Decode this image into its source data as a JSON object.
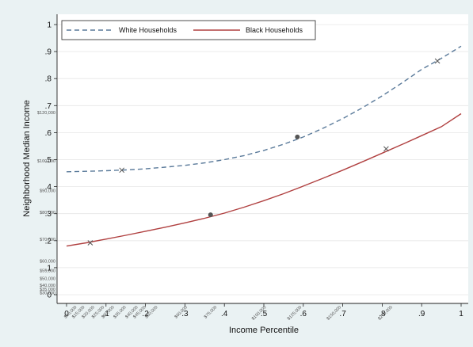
{
  "chart_data": {
    "type": "line",
    "xlabel": "Income Percentile",
    "ylabel": "Neighborhood Median Income",
    "xlim": [
      0,
      1
    ],
    "ylim": [
      0,
      1
    ],
    "x_ticks": [
      0,
      0.1,
      0.2,
      0.3,
      0.4,
      0.5,
      0.6,
      0.7,
      0.8,
      0.9,
      1
    ],
    "x_tick_labels": [
      "0",
      ".1",
      ".2",
      ".3",
      ".4",
      ".5",
      ".6",
      ".7",
      ".8",
      ".9",
      "1"
    ],
    "y_ticks": [
      0,
      0.1,
      0.2,
      0.3,
      0.4,
      0.5,
      0.6,
      0.7,
      0.8,
      0.9,
      1
    ],
    "y_tick_labels": [
      "0",
      ".1",
      ".2",
      ".3",
      ".4",
      ".5",
      ".6",
      ".7",
      ".8",
      ".9",
      "1"
    ],
    "x_dollar_labels": [
      {
        "x": 0.02,
        "label": "$10,000"
      },
      {
        "x": 0.04,
        "label": "$15,000"
      },
      {
        "x": 0.065,
        "label": "$20,000"
      },
      {
        "x": 0.09,
        "label": "$25,000"
      },
      {
        "x": 0.115,
        "label": "$30,000"
      },
      {
        "x": 0.145,
        "label": "$35,000"
      },
      {
        "x": 0.175,
        "label": "$40,000"
      },
      {
        "x": 0.195,
        "label": "$45,000"
      },
      {
        "x": 0.225,
        "label": "$50,000"
      },
      {
        "x": 0.3,
        "label": "$60,000"
      },
      {
        "x": 0.375,
        "label": "$75,000"
      },
      {
        "x": 0.5,
        "label": "$100,000"
      },
      {
        "x": 0.59,
        "label": "$125,000"
      },
      {
        "x": 0.69,
        "label": "$150,000"
      },
      {
        "x": 0.82,
        "label": "$200,000"
      }
    ],
    "y_dollar_labels": [
      {
        "y": 0.007,
        "label": "$30,000"
      },
      {
        "y": 0.02,
        "label": "$35,000"
      },
      {
        "y": 0.035,
        "label": "$40,000"
      },
      {
        "y": 0.06,
        "label": "$50,000"
      },
      {
        "y": 0.09,
        "label": "$55,000"
      },
      {
        "y": 0.125,
        "label": "$60,000"
      },
      {
        "y": 0.205,
        "label": "$70,000"
      },
      {
        "y": 0.305,
        "label": "$80,000"
      },
      {
        "y": 0.385,
        "label": "$90,000"
      },
      {
        "y": 0.495,
        "label": "$100,000"
      },
      {
        "y": 0.675,
        "label": "$120,000"
      }
    ],
    "legend": {
      "position": "top-left"
    },
    "grid": true,
    "series": [
      {
        "name": "White Households",
        "color": "#5a7a9a",
        "dash": "dashed",
        "x": [
          0,
          0.05,
          0.1,
          0.15,
          0.2,
          0.25,
          0.3,
          0.35,
          0.4,
          0.45,
          0.5,
          0.55,
          0.6,
          0.65,
          0.7,
          0.75,
          0.8,
          0.85,
          0.9,
          0.95,
          1
        ],
        "y": [
          0.455,
          0.457,
          0.459,
          0.462,
          0.466,
          0.472,
          0.479,
          0.488,
          0.5,
          0.515,
          0.534,
          0.557,
          0.584,
          0.616,
          0.652,
          0.692,
          0.736,
          0.784,
          0.834,
          0.875,
          0.92
        ],
        "markers": [
          {
            "x": 0.14,
            "y": 0.461,
            "shape": "x"
          },
          {
            "x": 0.585,
            "y": 0.584,
            "shape": "dot"
          },
          {
            "x": 0.94,
            "y": 0.865,
            "shape": "x"
          }
        ]
      },
      {
        "name": "Black Households",
        "color": "#b04040",
        "dash": "solid",
        "x": [
          0,
          0.05,
          0.1,
          0.15,
          0.2,
          0.25,
          0.3,
          0.35,
          0.4,
          0.45,
          0.5,
          0.55,
          0.6,
          0.65,
          0.7,
          0.75,
          0.8,
          0.85,
          0.9,
          0.95,
          1
        ],
        "y": [
          0.18,
          0.192,
          0.206,
          0.22,
          0.235,
          0.25,
          0.266,
          0.283,
          0.302,
          0.324,
          0.348,
          0.374,
          0.402,
          0.431,
          0.461,
          0.492,
          0.524,
          0.556,
          0.589,
          0.622,
          0.67
        ],
        "markers": [
          {
            "x": 0.06,
            "y": 0.192,
            "shape": "x"
          },
          {
            "x": 0.365,
            "y": 0.296,
            "shape": "dot"
          },
          {
            "x": 0.81,
            "y": 0.54,
            "shape": "x"
          }
        ]
      }
    ]
  }
}
